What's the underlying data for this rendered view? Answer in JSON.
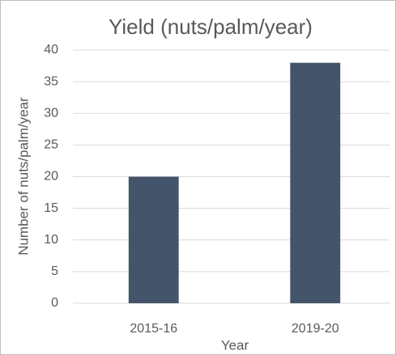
{
  "chart_data": {
    "type": "bar",
    "title": "Yield (nuts/palm/year)",
    "categories": [
      "2015-16",
      "2019-20"
    ],
    "values": [
      20,
      38
    ],
    "color": "#44546a",
    "xlabel": "Year",
    "ylabel": "Number of nuts/palm/year",
    "ylim": [
      0,
      40
    ],
    "yticks": [
      0,
      5,
      10,
      15,
      20,
      25,
      30,
      35,
      40
    ],
    "grid": true
  }
}
